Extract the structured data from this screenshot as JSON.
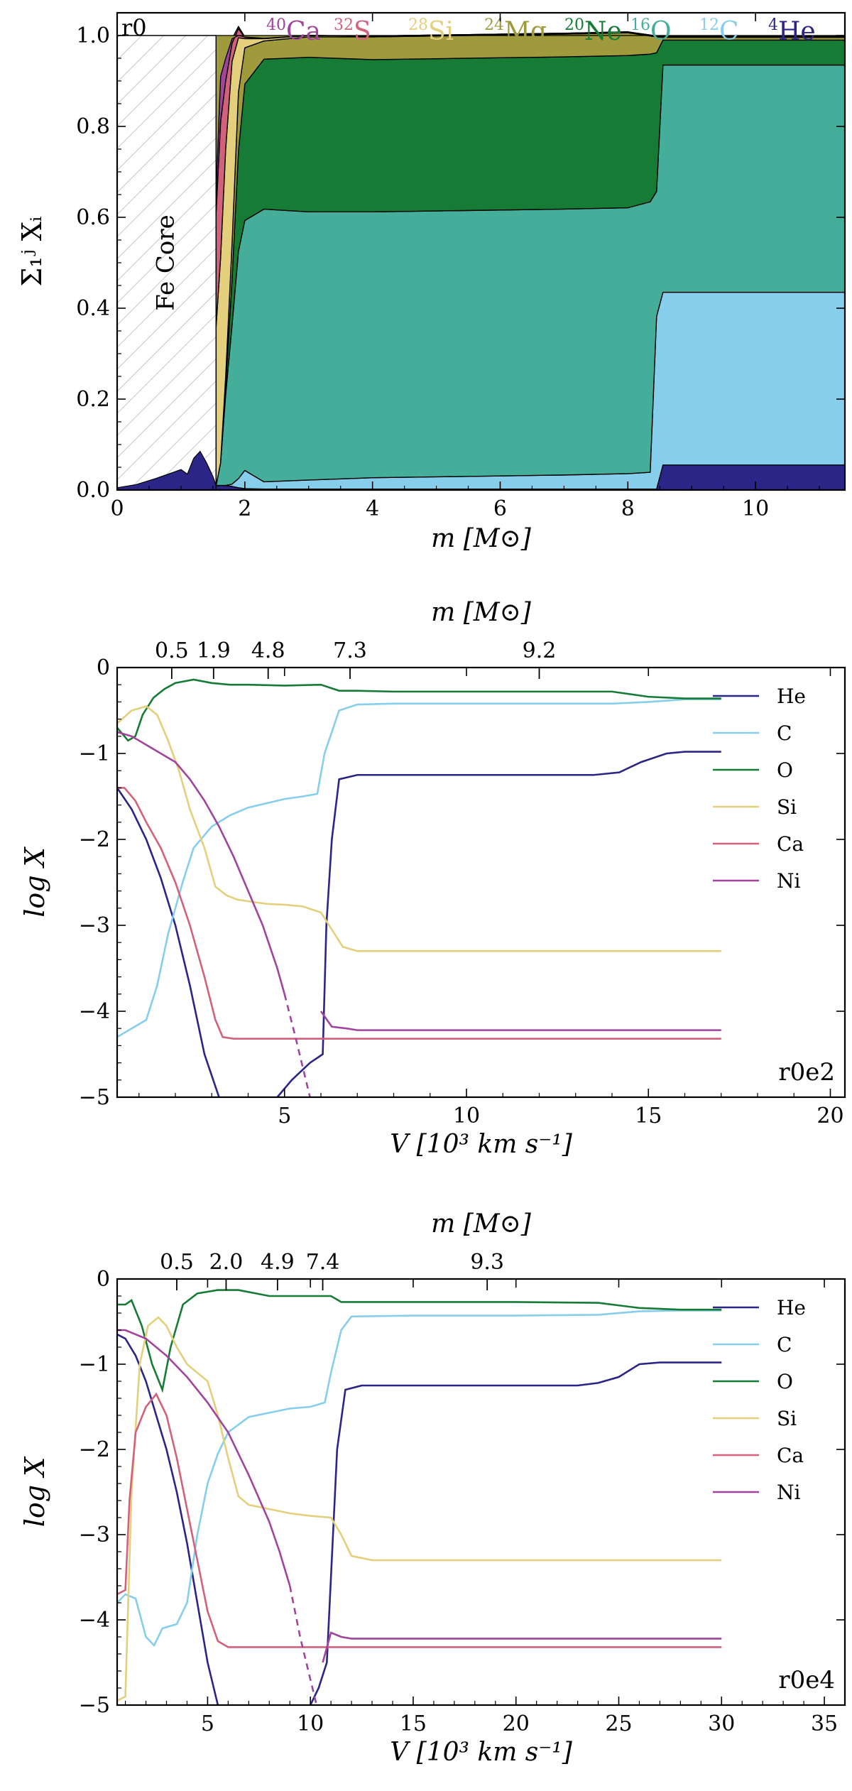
{
  "chart_data": [
    {
      "type": "area",
      "panel": "composition",
      "title": "",
      "xlabel": "m [M⊙]",
      "ylabel": "Σ₁ʲ Xᵢ",
      "xlim": [
        0,
        11.4
      ],
      "ylim": [
        0,
        1.05
      ],
      "xticks": [
        0,
        2,
        4,
        6,
        8,
        10
      ],
      "yticks": [
        0.0,
        0.2,
        0.4,
        0.6,
        0.8,
        1.0
      ],
      "xtick_labels": [
        "0",
        "2",
        "4",
        "6",
        "8",
        "10"
      ],
      "ytick_labels": [
        "0.0",
        "0.2",
        "0.4",
        "0.6",
        "0.8",
        "1.0"
      ],
      "model_label": "r0",
      "fe_core": {
        "label": "Fe Core",
        "m_range": [
          0,
          1.55
        ],
        "top": 1.0
      },
      "x": [
        1.55,
        1.62,
        1.7,
        1.8,
        1.9,
        2.0,
        2.3,
        3.0,
        4.0,
        5.0,
        6.0,
        7.0,
        8.0,
        8.35,
        8.45,
        8.55,
        9.0,
        10.0,
        11.0,
        11.4
      ],
      "series": [
        {
          "name": "4He",
          "label_iso": "4",
          "label_el": "He",
          "color": "#2b2587",
          "values": [
            0.01,
            0.01,
            0.01,
            0.008,
            0.005,
            0.003,
            0.002,
            0.002,
            0.002,
            0.002,
            0.002,
            0.002,
            0.002,
            0.002,
            0.002,
            0.055,
            0.055,
            0.055,
            0.055,
            0.055
          ]
        },
        {
          "name": "12C",
          "label_iso": "12",
          "label_el": "C",
          "color": "#87ceec",
          "values": [
            0.0,
            0.0,
            0.0,
            0.005,
            0.02,
            0.04,
            0.016,
            0.02,
            0.025,
            0.027,
            0.029,
            0.031,
            0.034,
            0.037,
            0.38,
            0.38,
            0.38,
            0.38,
            0.38,
            0.38
          ]
        },
        {
          "name": "16O",
          "label_iso": "16",
          "label_el": "O",
          "color": "#45ae9a",
          "values": [
            0.0,
            0.05,
            0.2,
            0.35,
            0.5,
            0.55,
            0.6,
            0.59,
            0.585,
            0.585,
            0.585,
            0.585,
            0.585,
            0.595,
            0.275,
            0.5,
            0.5,
            0.5,
            0.5,
            0.5
          ]
        },
        {
          "name": "20Ne",
          "label_iso": "20",
          "label_el": "Ne",
          "color": "#167c35",
          "values": [
            0.0,
            0.0,
            0.02,
            0.1,
            0.22,
            0.3,
            0.33,
            0.34,
            0.335,
            0.335,
            0.335,
            0.335,
            0.335,
            0.325,
            0.305,
            0.055,
            0.055,
            0.055,
            0.055,
            0.055
          ]
        },
        {
          "name": "24Mg",
          "label_iso": "24",
          "label_el": "Mg",
          "color": "#9f9b3d",
          "values": [
            0.0,
            0.0,
            0.02,
            0.08,
            0.13,
            0.08,
            0.04,
            0.045,
            0.05,
            0.05,
            0.05,
            0.05,
            0.05,
            0.04,
            0.035,
            0.006,
            0.006,
            0.006,
            0.006,
            0.006
          ]
        },
        {
          "name": "28Si",
          "label_iso": "28",
          "label_el": "Si",
          "color": "#e3cf7c",
          "values": [
            0.35,
            0.45,
            0.5,
            0.4,
            0.12,
            0.02,
            0.005,
            0.003,
            0.002,
            0.002,
            0.002,
            0.002,
            0.002,
            0.002,
            0.002,
            0.002,
            0.002,
            0.002,
            0.002,
            0.002
          ]
        },
        {
          "name": "32S",
          "label_iso": "32",
          "label_el": "S",
          "color": "#d2627c",
          "values": [
            0.25,
            0.3,
            0.15,
            0.04,
            0.02,
            0.003,
            0.001,
            0.0,
            0.0,
            0.0,
            0.0,
            0.0,
            0.0,
            0.0,
            0.0,
            0.0,
            0.0,
            0.0,
            0.0,
            0.0
          ]
        },
        {
          "name": "40Ca",
          "label_iso": "40",
          "label_el": "Ca",
          "color": "#a0449c",
          "values": [
            0.05,
            0.1,
            0.05,
            0.01,
            0.005,
            0.001,
            0.0,
            0.0,
            0.0,
            0.0,
            0.0,
            0.0,
            0.0,
            0.0,
            0.0,
            0.0,
            0.0,
            0.0,
            0.0,
            0.0
          ]
        }
      ],
      "inner_he": {
        "color": "#2b2587",
        "x": [
          0,
          0.3,
          0.6,
          0.9,
          1.0,
          1.1,
          1.2,
          1.3,
          1.4,
          1.5,
          1.55
        ],
        "y": [
          0.005,
          0.012,
          0.025,
          0.04,
          0.045,
          0.035,
          0.07,
          0.085,
          0.06,
          0.03,
          0.01
        ]
      }
    },
    {
      "type": "line",
      "panel": "r0e2",
      "model_label": "r0e2",
      "xlabel": "V [10³ km s⁻¹]",
      "ylabel": "log X",
      "top_axis_label": "m [M⊙]",
      "xlim": [
        0.4,
        20.4
      ],
      "ylim": [
        -5,
        0
      ],
      "xticks": [
        5,
        10,
        15,
        20
      ],
      "xtick_labels": [
        "5",
        "10",
        "15",
        "20"
      ],
      "yticks": [
        -5,
        -4,
        -3,
        -2,
        -1,
        0
      ],
      "ytick_labels": [
        "−5",
        "−4",
        "−3",
        "−2",
        "−1",
        "0"
      ],
      "top_ticks": [
        {
          "v": 1.9,
          "label": "0.5"
        },
        {
          "v": 3.05,
          "label": "1.9"
        },
        {
          "v": 4.55,
          "label": "4.8"
        },
        {
          "v": 6.8,
          "label": "7.3"
        },
        {
          "v": 12.0,
          "label": "9.2"
        }
      ],
      "series": [
        {
          "name": "He",
          "color": "#2b2587",
          "x": [
            0.4,
            0.8,
            1.2,
            1.6,
            2.0,
            2.4,
            2.8,
            3.2
          ],
          "y": [
            -1.4,
            -1.65,
            -2.0,
            -2.45,
            -3.0,
            -3.7,
            -4.5,
            -5.0
          ],
          "x2": [
            4.8,
            5.2,
            5.7,
            6.05,
            6.15,
            6.3,
            6.5,
            7.0,
            8.0,
            10.0,
            12.0,
            13.5,
            14.2,
            14.8,
            15.5,
            16.0,
            17.0
          ],
          "y2": [
            -5.0,
            -4.8,
            -4.6,
            -4.5,
            -3.0,
            -2.0,
            -1.3,
            -1.25,
            -1.25,
            -1.25,
            -1.25,
            -1.25,
            -1.22,
            -1.1,
            -1.0,
            -0.98,
            -0.98
          ],
          "dash2": [
            true
          ]
        },
        {
          "name": "C",
          "color": "#87ceec",
          "x": [
            0.4,
            0.8,
            1.2,
            1.5,
            1.8,
            2.0,
            2.2,
            2.5,
            3.0,
            3.5,
            4.0,
            4.5,
            5.0,
            5.5,
            5.9,
            6.1,
            6.5,
            7.0,
            8.0,
            10.0,
            12.0,
            13.0,
            14.0,
            15.0,
            16.0,
            17.0
          ],
          "y": [
            -4.3,
            -4.2,
            -4.1,
            -3.7,
            -3.1,
            -2.8,
            -2.5,
            -2.1,
            -1.85,
            -1.72,
            -1.63,
            -1.58,
            -1.53,
            -1.5,
            -1.47,
            -1.0,
            -0.5,
            -0.43,
            -0.42,
            -0.42,
            -0.42,
            -0.42,
            -0.42,
            -0.4,
            -0.37,
            -0.37
          ]
        },
        {
          "name": "O",
          "color": "#167c35",
          "x": [
            0.4,
            0.7,
            0.9,
            1.1,
            1.4,
            1.7,
            2.0,
            2.5,
            3.0,
            3.5,
            4.0,
            5.0,
            6.0,
            6.5,
            7.0,
            8.0,
            10.0,
            12.0,
            14.0,
            15.0,
            16.0,
            17.0
          ],
          "y": [
            -0.7,
            -0.85,
            -0.8,
            -0.55,
            -0.35,
            -0.25,
            -0.18,
            -0.14,
            -0.18,
            -0.2,
            -0.2,
            -0.21,
            -0.2,
            -0.27,
            -0.27,
            -0.28,
            -0.28,
            -0.28,
            -0.28,
            -0.34,
            -0.36,
            -0.36
          ]
        },
        {
          "name": "Si",
          "color": "#e3cf7c",
          "x": [
            0.4,
            0.8,
            1.2,
            1.5,
            1.8,
            2.1,
            2.4,
            2.8,
            3.1,
            3.4,
            3.7,
            4.0,
            4.5,
            5.0,
            5.5,
            6.0,
            6.3,
            6.6,
            7.0,
            8.0,
            10.0,
            12.0,
            14.0,
            16.0,
            17.0
          ],
          "y": [
            -0.65,
            -0.5,
            -0.45,
            -0.55,
            -0.85,
            -1.2,
            -1.65,
            -2.1,
            -2.55,
            -2.65,
            -2.7,
            -2.72,
            -2.75,
            -2.76,
            -2.78,
            -2.85,
            -3.05,
            -3.25,
            -3.3,
            -3.3,
            -3.3,
            -3.3,
            -3.3,
            -3.3,
            -3.3
          ]
        },
        {
          "name": "Ca",
          "color": "#d2627c",
          "x": [
            0.4,
            0.6,
            0.9,
            1.2,
            1.6,
            2.0,
            2.4,
            2.8,
            3.1,
            3.3,
            3.6,
            4.0,
            5.0,
            6.0,
            8.0,
            10.0,
            12.0,
            14.0,
            16.0,
            17.0
          ],
          "y": [
            -1.4,
            -1.4,
            -1.55,
            -1.8,
            -2.1,
            -2.5,
            -3.0,
            -3.6,
            -4.1,
            -4.3,
            -4.32,
            -4.32,
            -4.32,
            -4.32,
            -4.32,
            -4.32,
            -4.32,
            -4.32,
            -4.32,
            -4.32
          ]
        },
        {
          "name": "Ni",
          "color": "#a0449c",
          "x": [
            0.4,
            0.8,
            1.2,
            1.6,
            2.0,
            2.4,
            2.8,
            3.2,
            3.6,
            4.0,
            4.4,
            4.8,
            5.0,
            5.3,
            5.7,
            6.0,
            6.3,
            6.7,
            7.0,
            8.0,
            10.0,
            12.0,
            14.0,
            16.0,
            17.0
          ],
          "y": [
            -0.75,
            -0.8,
            -0.9,
            -1.0,
            -1.1,
            -1.3,
            -1.55,
            -1.85,
            -2.2,
            -2.6,
            -3.0,
            -3.5,
            -3.8,
            -4.3,
            -5.0,
            -4.0,
            -4.18,
            -4.2,
            -4.22,
            -4.22,
            -4.22,
            -4.22,
            -4.22,
            -4.22,
            -4.22
          ],
          "dashed_from_x": 5.0
        }
      ]
    },
    {
      "type": "line",
      "panel": "r0e4",
      "model_label": "r0e4",
      "xlabel": "V [10³ km s⁻¹]",
      "ylabel": "log X",
      "top_axis_label": "m [M⊙]",
      "xlim": [
        0.6,
        36.0
      ],
      "ylim": [
        -5,
        0
      ],
      "xticks": [
        5,
        10,
        15,
        20,
        25,
        30,
        35
      ],
      "xtick_labels": [
        "5",
        "10",
        "15",
        "20",
        "25",
        "30",
        "35"
      ],
      "yticks": [
        -5,
        -4,
        -3,
        -2,
        -1,
        0
      ],
      "ytick_labels": [
        "−5",
        "−4",
        "−3",
        "−2",
        "−1",
        "0"
      ],
      "top_ticks": [
        {
          "v": 3.5,
          "label": "0.5"
        },
        {
          "v": 5.9,
          "label": "2.0"
        },
        {
          "v": 8.4,
          "label": "4.9"
        },
        {
          "v": 10.6,
          "label": "7.4"
        },
        {
          "v": 18.6,
          "label": "9.3"
        }
      ],
      "series": [
        {
          "name": "He",
          "color": "#2b2587",
          "x": [
            0.6,
            1.0,
            1.5,
            2.0,
            2.5,
            3.0,
            3.5,
            4.0,
            4.5,
            5.0,
            5.5
          ],
          "y": [
            -0.65,
            -0.7,
            -0.9,
            -1.2,
            -1.6,
            -2.0,
            -2.5,
            -3.1,
            -3.8,
            -4.5,
            -5.0
          ],
          "x2": [
            10.0,
            10.4,
            10.8,
            11.0,
            11.3,
            11.7,
            12.5,
            15.0,
            20.0,
            23.0,
            24.0,
            25.0,
            26.0,
            27.0,
            30.0
          ],
          "y2": [
            -5.0,
            -4.8,
            -4.5,
            -3.5,
            -2.0,
            -1.3,
            -1.25,
            -1.25,
            -1.25,
            -1.25,
            -1.22,
            -1.15,
            -1.0,
            -0.98,
            -0.98
          ]
        },
        {
          "name": "C",
          "color": "#87ceec",
          "x": [
            0.6,
            1.0,
            1.5,
            2.0,
            2.4,
            2.8,
            3.5,
            4.0,
            4.5,
            5.0,
            5.5,
            6.0,
            7.0,
            8.0,
            9.0,
            10.0,
            10.7,
            11.0,
            11.5,
            12.0,
            15.0,
            20.0,
            24.0,
            26.0,
            28.0,
            30.0
          ],
          "y": [
            -3.8,
            -3.7,
            -3.75,
            -4.2,
            -4.3,
            -4.1,
            -4.05,
            -3.8,
            -3.0,
            -2.4,
            -2.05,
            -1.8,
            -1.62,
            -1.57,
            -1.52,
            -1.5,
            -1.45,
            -1.1,
            -0.6,
            -0.44,
            -0.43,
            -0.43,
            -0.42,
            -0.38,
            -0.37,
            -0.37
          ]
        },
        {
          "name": "O",
          "color": "#167c35",
          "x": [
            0.6,
            1.0,
            1.3,
            1.8,
            2.3,
            2.8,
            3.2,
            3.8,
            4.5,
            5.5,
            6.5,
            8.0,
            10.0,
            11.0,
            11.5,
            12.0,
            15.0,
            20.0,
            24.0,
            26.0,
            28.0,
            30.0
          ],
          "y": [
            -0.3,
            -0.3,
            -0.25,
            -0.55,
            -1.0,
            -1.3,
            -0.8,
            -0.3,
            -0.17,
            -0.13,
            -0.13,
            -0.2,
            -0.2,
            -0.2,
            -0.27,
            -0.27,
            -0.27,
            -0.27,
            -0.28,
            -0.34,
            -0.36,
            -0.36
          ]
        },
        {
          "name": "Si",
          "color": "#e3cf7c",
          "x": [
            0.6,
            1.0,
            1.3,
            1.7,
            2.1,
            2.6,
            3.0,
            3.5,
            4.0,
            4.5,
            5.0,
            5.5,
            6.0,
            6.5,
            7.0,
            8.0,
            9.0,
            10.0,
            11.0,
            11.5,
            12.0,
            13.0,
            15.0,
            20.0,
            25.0,
            30.0
          ],
          "y": [
            -4.95,
            -4.9,
            -2.5,
            -1.0,
            -0.55,
            -0.45,
            -0.55,
            -0.8,
            -1.0,
            -1.1,
            -1.2,
            -1.6,
            -2.1,
            -2.55,
            -2.65,
            -2.7,
            -2.75,
            -2.78,
            -2.8,
            -3.0,
            -3.25,
            -3.3,
            -3.3,
            -3.3,
            -3.3,
            -3.3
          ]
        },
        {
          "name": "Ca",
          "color": "#d2627c",
          "x": [
            0.6,
            1.0,
            1.2,
            1.5,
            2.0,
            2.5,
            3.0,
            3.5,
            4.0,
            4.5,
            5.0,
            5.5,
            6.0,
            7.0,
            10.0,
            15.0,
            20.0,
            25.0,
            30.0
          ],
          "y": [
            -3.7,
            -3.65,
            -2.6,
            -1.8,
            -1.5,
            -1.35,
            -1.6,
            -2.1,
            -2.7,
            -3.3,
            -3.9,
            -4.25,
            -4.32,
            -4.32,
            -4.32,
            -4.32,
            -4.32,
            -4.32,
            -4.32
          ]
        },
        {
          "name": "Ni",
          "color": "#a0449c",
          "x": [
            0.6,
            1.0,
            2.0,
            3.0,
            4.0,
            5.0,
            6.0,
            7.0,
            8.0,
            8.5,
            9.0,
            9.5,
            10.0,
            10.3,
            10.6,
            11.0,
            11.5,
            12.0,
            15.0,
            20.0,
            25.0,
            30.0
          ],
          "y": [
            -0.6,
            -0.6,
            -0.7,
            -0.9,
            -1.15,
            -1.45,
            -1.8,
            -2.3,
            -2.85,
            -3.2,
            -3.6,
            -4.2,
            -4.7,
            -5.0,
            -4.5,
            -4.15,
            -4.2,
            -4.22,
            -4.22,
            -4.22,
            -4.22,
            -4.22
          ],
          "dashed_from_x": 9.0
        }
      ]
    }
  ]
}
